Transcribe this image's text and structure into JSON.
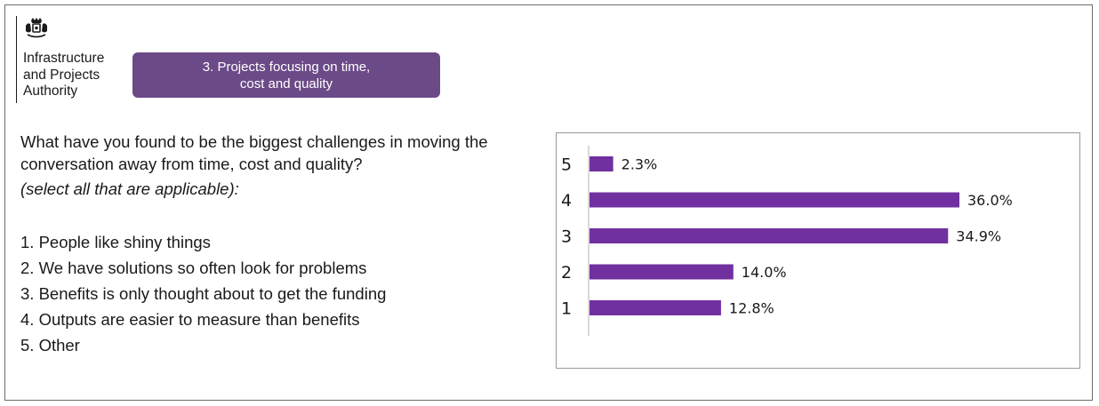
{
  "header": {
    "org_name": "Infrastructure\nand Projects\nAuthority",
    "section_tag": "3. Projects focusing on time, cost and quality"
  },
  "question": {
    "text": "What have you found to be the biggest challenges in moving the conversation away from time, cost and quality?",
    "hint": "(select all that are applicable):",
    "options": [
      "1. People like shiny things",
      "2. We have solutions so often look for problems",
      "3. Benefits is only thought about to get the funding",
      "4. Outputs are easier to measure than benefits",
      "5. Other"
    ]
  },
  "colors": {
    "accent": "#6b4a87",
    "bar": "#7030a0"
  },
  "icons": {
    "logo": "royal-coat-of-arms-icon"
  },
  "chart_data": {
    "type": "bar",
    "orientation": "horizontal",
    "categories": [
      "5",
      "4",
      "3",
      "2",
      "1"
    ],
    "values": [
      2.3,
      36.0,
      34.9,
      14.0,
      12.8
    ],
    "value_labels": [
      "2.3%",
      "36.0%",
      "34.9%",
      "14.0%",
      "12.8%"
    ],
    "title": "",
    "xlabel": "",
    "ylabel": "",
    "xlim": [
      0,
      45
    ],
    "grid": false,
    "legend": "none"
  }
}
